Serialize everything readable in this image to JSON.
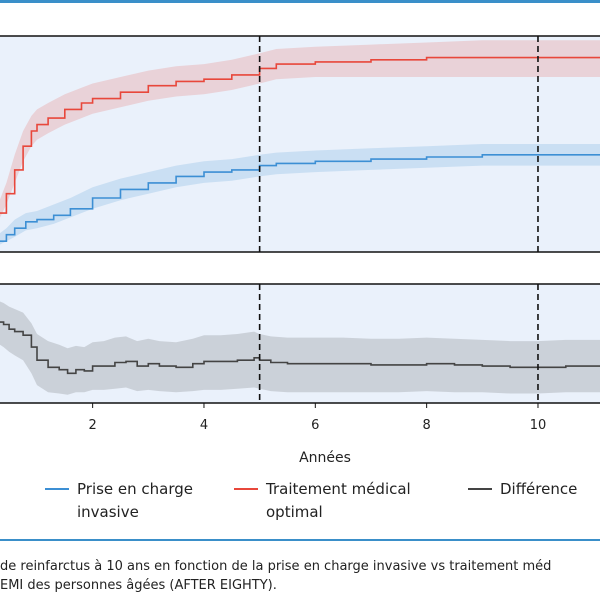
{
  "chart_data": {
    "type": "line",
    "xlabel": "Années",
    "x_ticks": [
      2,
      4,
      6,
      8,
      10
    ],
    "xlim": [
      0.3,
      11.15
    ],
    "landmarks": [
      5,
      10
    ],
    "colors": {
      "invasive": "#3c8fd4",
      "medical": "#e8473b",
      "difference": "#444444"
    },
    "panels": [
      {
        "name": "top",
        "ylim": [
          0,
          1
        ],
        "series": [
          {
            "key": "medical",
            "name": "Traitement médical optimal",
            "x": [
              0.3,
              0.45,
              0.6,
              0.75,
              0.9,
              1.0,
              1.2,
              1.5,
              1.8,
              2.0,
              2.5,
              3.0,
              3.5,
              4.0,
              4.5,
              5.0,
              5.3,
              6.0,
              7.0,
              8.0,
              9.0,
              10.0,
              11.15
            ],
            "values": [
              0.18,
              0.27,
              0.38,
              0.49,
              0.56,
              0.59,
              0.62,
              0.66,
              0.69,
              0.71,
              0.74,
              0.77,
              0.79,
              0.8,
              0.82,
              0.85,
              0.87,
              0.88,
              0.89,
              0.9,
              0.9,
              0.9,
              0.9
            ],
            "lower": [
              0.14,
              0.22,
              0.32,
              0.42,
              0.49,
              0.52,
              0.55,
              0.59,
              0.62,
              0.64,
              0.67,
              0.7,
              0.72,
              0.73,
              0.75,
              0.78,
              0.8,
              0.81,
              0.81,
              0.81,
              0.81,
              0.81,
              0.81
            ],
            "upper": [
              0.22,
              0.32,
              0.45,
              0.56,
              0.63,
              0.66,
              0.69,
              0.73,
              0.76,
              0.78,
              0.81,
              0.84,
              0.86,
              0.87,
              0.89,
              0.92,
              0.94,
              0.95,
              0.96,
              0.97,
              0.98,
              0.98,
              0.98
            ]
          },
          {
            "key": "invasive",
            "name": "Prise en charge invasive",
            "x": [
              0.3,
              0.45,
              0.6,
              0.8,
              1.0,
              1.3,
              1.6,
              2.0,
              2.5,
              3.0,
              3.5,
              4.0,
              4.5,
              5.0,
              5.3,
              6.0,
              7.0,
              8.0,
              9.0,
              10.0,
              11.15
            ],
            "values": [
              0.05,
              0.08,
              0.11,
              0.14,
              0.15,
              0.17,
              0.2,
              0.25,
              0.29,
              0.32,
              0.35,
              0.37,
              0.38,
              0.4,
              0.41,
              0.42,
              0.43,
              0.44,
              0.45,
              0.45,
              0.45
            ],
            "lower": [
              0.03,
              0.05,
              0.07,
              0.1,
              0.11,
              0.13,
              0.16,
              0.2,
              0.24,
              0.27,
              0.3,
              0.32,
              0.33,
              0.35,
              0.36,
              0.37,
              0.38,
              0.39,
              0.4,
              0.4,
              0.4
            ],
            "upper": [
              0.08,
              0.11,
              0.15,
              0.18,
              0.19,
              0.22,
              0.25,
              0.3,
              0.34,
              0.37,
              0.4,
              0.42,
              0.43,
              0.45,
              0.46,
              0.47,
              0.48,
              0.49,
              0.5,
              0.5,
              0.5
            ]
          }
        ]
      },
      {
        "name": "bottom",
        "ylim": [
          0,
          1
        ],
        "series": [
          {
            "key": "difference",
            "name": "Différence",
            "x": [
              0.3,
              0.4,
              0.5,
              0.6,
              0.75,
              0.9,
              1.0,
              1.2,
              1.4,
              1.55,
              1.7,
              1.85,
              2.0,
              2.2,
              2.4,
              2.6,
              2.8,
              3.0,
              3.2,
              3.5,
              3.8,
              4.0,
              4.3,
              4.6,
              4.9,
              5.0,
              5.2,
              5.5,
              6.0,
              6.5,
              7.0,
              7.5,
              8.0,
              8.5,
              9.0,
              9.5,
              10.0,
              10.5,
              11.15
            ],
            "values": [
              0.68,
              0.66,
              0.62,
              0.6,
              0.57,
              0.47,
              0.36,
              0.3,
              0.28,
              0.25,
              0.28,
              0.27,
              0.31,
              0.31,
              0.34,
              0.35,
              0.31,
              0.33,
              0.31,
              0.3,
              0.33,
              0.35,
              0.35,
              0.36,
              0.38,
              0.36,
              0.34,
              0.33,
              0.33,
              0.33,
              0.32,
              0.32,
              0.33,
              0.32,
              0.31,
              0.3,
              0.3,
              0.31,
              0.31
            ],
            "lower": [
              0.5,
              0.47,
              0.43,
              0.4,
              0.36,
              0.25,
              0.15,
              0.09,
              0.08,
              0.07,
              0.09,
              0.09,
              0.11,
              0.11,
              0.12,
              0.13,
              0.1,
              0.11,
              0.1,
              0.09,
              0.1,
              0.11,
              0.11,
              0.12,
              0.13,
              0.12,
              0.1,
              0.09,
              0.09,
              0.09,
              0.09,
              0.09,
              0.1,
              0.09,
              0.09,
              0.08,
              0.08,
              0.09,
              0.09
            ],
            "upper": [
              0.86,
              0.84,
              0.81,
              0.79,
              0.76,
              0.67,
              0.58,
              0.52,
              0.49,
              0.46,
              0.48,
              0.47,
              0.51,
              0.52,
              0.55,
              0.56,
              0.52,
              0.54,
              0.52,
              0.51,
              0.54,
              0.57,
              0.57,
              0.58,
              0.6,
              0.58,
              0.56,
              0.55,
              0.55,
              0.55,
              0.54,
              0.54,
              0.55,
              0.54,
              0.53,
              0.52,
              0.52,
              0.53,
              0.53
            ]
          }
        ]
      }
    ],
    "legend": [
      {
        "key": "invasive",
        "lines": [
          "Prise en charge",
          "invasive"
        ]
      },
      {
        "key": "medical",
        "lines": [
          "Traitement médical",
          "optimal"
        ]
      },
      {
        "key": "difference",
        "lines": [
          "Différence"
        ]
      }
    ]
  },
  "caption": {
    "line1": "de reinfarctus à 10 ans en fonction de la prise en charge invasive vs traitement méd",
    "line2": "EMI des personnes âgées (AFTER EIGHTY)."
  }
}
